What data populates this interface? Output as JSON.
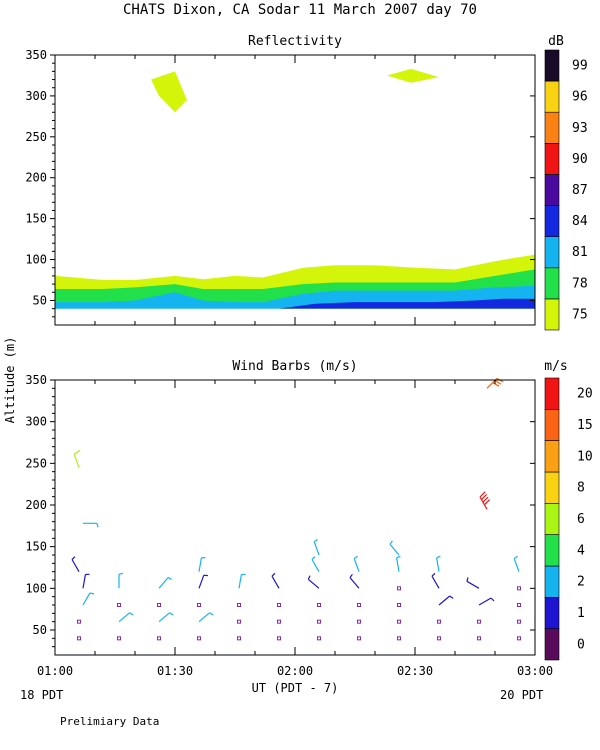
{
  "page_title": "CHATS Dixon, CA   Sodar   11 March 2007   day  70",
  "ylabel": "Altitude (m)",
  "xlabel": "UT  (PDT - 7)",
  "x_left_note": "18 PDT",
  "x_right_note": "20 PDT",
  "footer": "Prelimiary Data",
  "colors": {
    "axis": "#000000",
    "background": "#ffffff"
  },
  "chart_data": [
    {
      "type": "area",
      "title": "Reflectivity",
      "units": "dB",
      "x_range_min": [
        60,
        180
      ],
      "ylim": [
        20,
        350
      ],
      "yticks": [
        50,
        100,
        150,
        200,
        250,
        300,
        350
      ],
      "xticks": [
        {
          "v": 60,
          "label": "01:00"
        },
        {
          "v": 90,
          "label": "01:30"
        },
        {
          "v": 120,
          "label": "02:00"
        },
        {
          "v": 150,
          "label": "02:30"
        },
        {
          "v": 180,
          "label": "03:00"
        }
      ],
      "colorbar": [
        {
          "label": "75",
          "color": "#d4f50a"
        },
        {
          "label": "78",
          "color": "#22e04a"
        },
        {
          "label": "81",
          "color": "#14b4f0"
        },
        {
          "label": "84",
          "color": "#1428e0"
        },
        {
          "label": "87",
          "color": "#4a0aa0"
        },
        {
          "label": "90",
          "color": "#f01414"
        },
        {
          "label": "93",
          "color": "#fa8214"
        },
        {
          "label": "96",
          "color": "#fad214"
        },
        {
          "label": "99",
          "color": "#1a0a2a"
        }
      ],
      "layers": [
        {
          "level": "75",
          "color": "#d4f50a",
          "x": [
            60,
            65,
            72,
            80,
            90,
            97,
            105,
            112,
            122,
            130,
            140,
            150,
            160,
            170,
            180
          ],
          "top": [
            80,
            78,
            75,
            75,
            80,
            76,
            80,
            78,
            90,
            93,
            93,
            90,
            88,
            98,
            106
          ],
          "base": [
            40,
            40,
            40,
            40,
            40,
            40,
            40,
            40,
            40,
            40,
            40,
            40,
            40,
            40,
            40
          ]
        },
        {
          "level": "78",
          "color": "#22e04a",
          "x": [
            60,
            65,
            72,
            80,
            90,
            97,
            105,
            112,
            122,
            130,
            140,
            150,
            160,
            170,
            180
          ],
          "top": [
            64,
            64,
            64,
            66,
            70,
            64,
            64,
            64,
            70,
            72,
            72,
            72,
            72,
            80,
            88
          ],
          "base": [
            40,
            40,
            40,
            40,
            40,
            40,
            40,
            40,
            40,
            40,
            40,
            40,
            40,
            40,
            40
          ]
        },
        {
          "level": "81",
          "color": "#14b4f0",
          "x": [
            60,
            65,
            72,
            80,
            90,
            97,
            105,
            112,
            122,
            130,
            140,
            150,
            160,
            170,
            180
          ],
          "top": [
            48,
            48,
            48,
            50,
            60,
            50,
            48,
            48,
            58,
            62,
            62,
            62,
            62,
            66,
            68
          ],
          "base": [
            40,
            40,
            40,
            40,
            40,
            40,
            40,
            40,
            40,
            40,
            40,
            40,
            40,
            40,
            40
          ]
        },
        {
          "level": "84",
          "color": "#1428e0",
          "x": [
            116,
            125,
            135,
            145,
            155,
            165,
            172,
            180
          ],
          "top": [
            40,
            46,
            48,
            48,
            48,
            50,
            52,
            52
          ],
          "base": [
            40,
            40,
            40,
            40,
            40,
            40,
            40,
            40
          ]
        }
      ],
      "blobs": [
        {
          "level": "75",
          "color": "#d4f50a",
          "points": [
            [
              84,
              320
            ],
            [
              90,
              330
            ],
            [
              93,
              295
            ],
            [
              90,
              280
            ],
            [
              86,
              300
            ]
          ]
        },
        {
          "level": "75",
          "color": "#d4f50a",
          "points": [
            [
              143,
              325
            ],
            [
              149,
              333
            ],
            [
              156,
              323
            ],
            [
              149,
              316
            ]
          ]
        }
      ]
    },
    {
      "type": "scatter",
      "title": "Wind Barbs (m/s)",
      "units": "m/s",
      "x_range_min": [
        60,
        180
      ],
      "ylim": [
        20,
        350
      ],
      "yticks": [
        50,
        100,
        150,
        200,
        250,
        300,
        350
      ],
      "xticks": [
        {
          "v": 60,
          "label": "01:00"
        },
        {
          "v": 90,
          "label": "01:30"
        },
        {
          "v": 120,
          "label": "02:00"
        },
        {
          "v": 150,
          "label": "02:30"
        },
        {
          "v": 180,
          "label": "03:00"
        }
      ],
      "colorbar": [
        {
          "label": "0",
          "color": "#5a0a5a"
        },
        {
          "label": "1",
          "color": "#1e14d2"
        },
        {
          "label": "2",
          "color": "#14b4f0"
        },
        {
          "label": "4",
          "color": "#22e04a"
        },
        {
          "label": "6",
          "color": "#aaf514"
        },
        {
          "label": "8",
          "color": "#fad214"
        },
        {
          "label": "10",
          "color": "#faa014"
        },
        {
          "label": "15",
          "color": "#fa6414"
        },
        {
          "label": "20",
          "color": "#f01414"
        }
      ],
      "calm_color": "#8a2aa8",
      "barbs": [
        {
          "t": 66,
          "z": 40,
          "dir": 0,
          "speed": 0,
          "color": "#8a2aa8"
        },
        {
          "t": 66,
          "z": 60,
          "dir": 0,
          "speed": 0,
          "color": "#8a2aa8"
        },
        {
          "t": 67,
          "z": 80,
          "dir": 30,
          "speed": 3,
          "color": "#14b4f0"
        },
        {
          "t": 67,
          "z": 100,
          "dir": 10,
          "speed": 1.5,
          "color": "#1e14d2"
        },
        {
          "t": 66,
          "z": 120,
          "dir": 330,
          "speed": 1.5,
          "color": "#1e14d2"
        },
        {
          "t": 67,
          "z": 178,
          "dir": 90,
          "speed": 3,
          "color": "#14b4f0"
        },
        {
          "t": 66,
          "z": 245,
          "dir": 340,
          "speed": 6,
          "color": "#aaf514"
        },
        {
          "t": 76,
          "z": 40,
          "dir": 0,
          "speed": 0,
          "color": "#8a2aa8"
        },
        {
          "t": 76,
          "z": 60,
          "dir": 50,
          "speed": 3,
          "color": "#14b4f0"
        },
        {
          "t": 76,
          "z": 80,
          "dir": 0,
          "speed": 0,
          "color": "#8a2aa8"
        },
        {
          "t": 76,
          "z": 100,
          "dir": 0,
          "speed": 3,
          "color": "#14b4f0"
        },
        {
          "t": 86,
          "z": 40,
          "dir": 0,
          "speed": 0,
          "color": "#8a2aa8"
        },
        {
          "t": 86,
          "z": 60,
          "dir": 50,
          "speed": 3,
          "color": "#14b4f0"
        },
        {
          "t": 86,
          "z": 80,
          "dir": 0,
          "speed": 0,
          "color": "#8a2aa8"
        },
        {
          "t": 86,
          "z": 100,
          "dir": 40,
          "speed": 3,
          "color": "#14b4f0"
        },
        {
          "t": 96,
          "z": 40,
          "dir": 0,
          "speed": 0,
          "color": "#8a2aa8"
        },
        {
          "t": 96,
          "z": 60,
          "dir": 50,
          "speed": 3,
          "color": "#14b4f0"
        },
        {
          "t": 96,
          "z": 80,
          "dir": 0,
          "speed": 0,
          "color": "#8a2aa8"
        },
        {
          "t": 96,
          "z": 100,
          "dir": 20,
          "speed": 1.5,
          "color": "#1e14d2"
        },
        {
          "t": 96,
          "z": 120,
          "dir": 10,
          "speed": 3,
          "color": "#14b4f0"
        },
        {
          "t": 106,
          "z": 40,
          "dir": 0,
          "speed": 0,
          "color": "#8a2aa8"
        },
        {
          "t": 106,
          "z": 60,
          "dir": 0,
          "speed": 0,
          "color": "#8a2aa8"
        },
        {
          "t": 106,
          "z": 80,
          "dir": 0,
          "speed": 0,
          "color": "#8a2aa8"
        },
        {
          "t": 106,
          "z": 100,
          "dir": 10,
          "speed": 3,
          "color": "#14b4f0"
        },
        {
          "t": 116,
          "z": 40,
          "dir": 0,
          "speed": 0,
          "color": "#8a2aa8"
        },
        {
          "t": 116,
          "z": 60,
          "dir": 0,
          "speed": 0,
          "color": "#8a2aa8"
        },
        {
          "t": 116,
          "z": 80,
          "dir": 0,
          "speed": 0,
          "color": "#8a2aa8"
        },
        {
          "t": 116,
          "z": 100,
          "dir": 330,
          "speed": 1.5,
          "color": "#1e14d2"
        },
        {
          "t": 126,
          "z": 40,
          "dir": 0,
          "speed": 0,
          "color": "#8a2aa8"
        },
        {
          "t": 126,
          "z": 60,
          "dir": 0,
          "speed": 0,
          "color": "#8a2aa8"
        },
        {
          "t": 126,
          "z": 80,
          "dir": 0,
          "speed": 0,
          "color": "#8a2aa8"
        },
        {
          "t": 126,
          "z": 100,
          "dir": 310,
          "speed": 1.5,
          "color": "#1e14d2"
        },
        {
          "t": 126,
          "z": 120,
          "dir": 330,
          "speed": 3,
          "color": "#14b4f0"
        },
        {
          "t": 126,
          "z": 140,
          "dir": 340,
          "speed": 3,
          "color": "#14b4f0"
        },
        {
          "t": 136,
          "z": 40,
          "dir": 0,
          "speed": 0,
          "color": "#8a2aa8"
        },
        {
          "t": 136,
          "z": 60,
          "dir": 0,
          "speed": 0,
          "color": "#8a2aa8"
        },
        {
          "t": 136,
          "z": 80,
          "dir": 0,
          "speed": 0,
          "color": "#8a2aa8"
        },
        {
          "t": 136,
          "z": 100,
          "dir": 320,
          "speed": 1.5,
          "color": "#1e14d2"
        },
        {
          "t": 136,
          "z": 120,
          "dir": 340,
          "speed": 3,
          "color": "#14b4f0"
        },
        {
          "t": 146,
          "z": 40,
          "dir": 0,
          "speed": 0,
          "color": "#8a2aa8"
        },
        {
          "t": 146,
          "z": 60,
          "dir": 0,
          "speed": 0,
          "color": "#8a2aa8"
        },
        {
          "t": 146,
          "z": 80,
          "dir": 0,
          "speed": 0,
          "color": "#8a2aa8"
        },
        {
          "t": 146,
          "z": 100,
          "dir": 0,
          "speed": 0,
          "color": "#8a2aa8"
        },
        {
          "t": 146,
          "z": 120,
          "dir": 350,
          "speed": 3,
          "color": "#14b4f0"
        },
        {
          "t": 146,
          "z": 140,
          "dir": 320,
          "speed": 3,
          "color": "#14b4f0"
        },
        {
          "t": 156,
          "z": 40,
          "dir": 0,
          "speed": 0,
          "color": "#8a2aa8"
        },
        {
          "t": 156,
          "z": 60,
          "dir": 0,
          "speed": 0,
          "color": "#8a2aa8"
        },
        {
          "t": 156,
          "z": 80,
          "dir": 50,
          "speed": 1.5,
          "color": "#1e14d2"
        },
        {
          "t": 156,
          "z": 100,
          "dir": 330,
          "speed": 1.5,
          "color": "#1e14d2"
        },
        {
          "t": 156,
          "z": 120,
          "dir": 350,
          "speed": 3,
          "color": "#14b4f0"
        },
        {
          "t": 166,
          "z": 40,
          "dir": 0,
          "speed": 0,
          "color": "#8a2aa8"
        },
        {
          "t": 166,
          "z": 60,
          "dir": 0,
          "speed": 0,
          "color": "#8a2aa8"
        },
        {
          "t": 166,
          "z": 80,
          "dir": 60,
          "speed": 1.5,
          "color": "#1e14d2"
        },
        {
          "t": 166,
          "z": 100,
          "dir": 300,
          "speed": 1.5,
          "color": "#1e14d2"
        },
        {
          "t": 168,
          "z": 195,
          "dir": 330,
          "speed": 20,
          "color": "#f01414"
        },
        {
          "t": 168,
          "z": 340,
          "dir": 45,
          "speed": 15,
          "color": "#fa6414"
        },
        {
          "t": 176,
          "z": 40,
          "dir": 0,
          "speed": 0,
          "color": "#8a2aa8"
        },
        {
          "t": 176,
          "z": 60,
          "dir": 0,
          "speed": 0,
          "color": "#8a2aa8"
        },
        {
          "t": 176,
          "z": 80,
          "dir": 0,
          "speed": 0,
          "color": "#8a2aa8"
        },
        {
          "t": 176,
          "z": 100,
          "dir": 0,
          "speed": 0,
          "color": "#8a2aa8"
        },
        {
          "t": 176,
          "z": 120,
          "dir": 340,
          "speed": 3,
          "color": "#14b4f0"
        }
      ]
    }
  ]
}
